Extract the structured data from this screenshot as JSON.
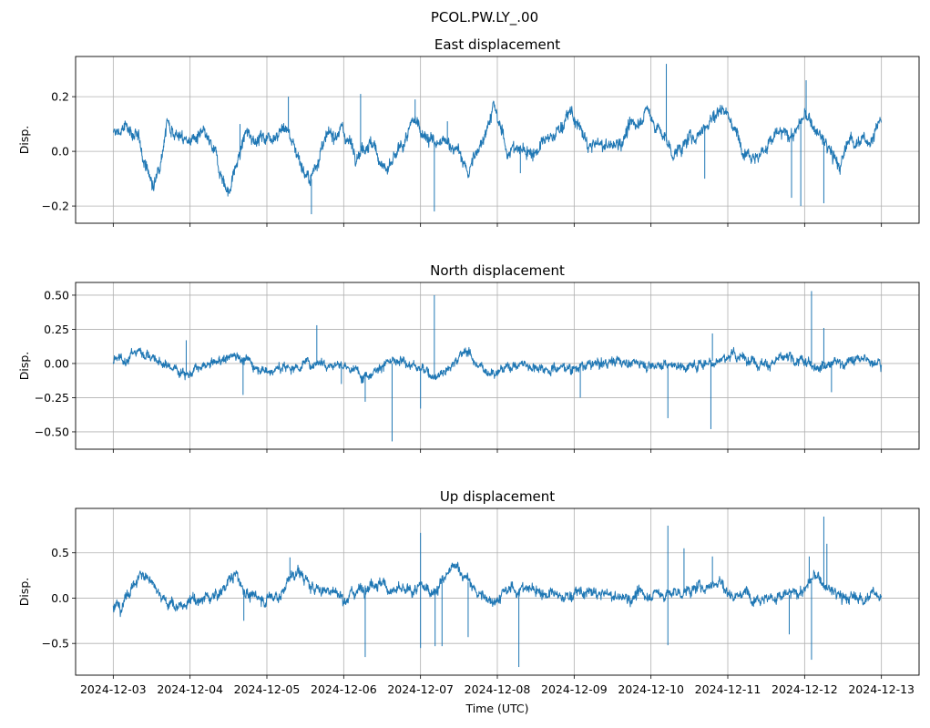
{
  "chart_data": {
    "type": "line",
    "suptitle": "PCOL.PW.LY_.00",
    "xlabel": "Time (UTC)",
    "x_unit": "days since 2024-12-03",
    "xlim": [
      -0.49,
      10.49
    ],
    "x_ticks": [
      0,
      1,
      2,
      3,
      4,
      5,
      6,
      7,
      8,
      9,
      10
    ],
    "x_tick_labels": [
      "2024-12-03",
      "2024-12-04",
      "2024-12-05",
      "2024-12-06",
      "2024-12-07",
      "2024-12-08",
      "2024-12-09",
      "2024-12-10",
      "2024-12-11",
      "2024-12-12",
      "2024-12-13"
    ],
    "grid": true,
    "color": "#1f77b4",
    "panels": [
      {
        "title": "East displacement",
        "ylabel": "Disp.",
        "ylim": [
          -0.263,
          0.347
        ],
        "y_ticks": [
          -0.2,
          0.0,
          0.2
        ],
        "y_tick_labels": [
          "−0.2",
          "0.0",
          "0.2"
        ],
        "noise": 0.014,
        "trend": [
          [
            0,
            0.06
          ],
          [
            0.21,
            0.09
          ],
          [
            0.35,
            0.02
          ],
          [
            0.53,
            -0.14
          ],
          [
            0.7,
            0.11
          ],
          [
            0.91,
            0.04
          ],
          [
            1.19,
            0.05
          ],
          [
            1.33,
            -0.02
          ],
          [
            1.5,
            -0.15
          ],
          [
            1.72,
            0.06
          ],
          [
            1.96,
            0.05
          ],
          [
            2.25,
            0.09
          ],
          [
            2.39,
            0.0
          ],
          [
            2.56,
            -0.12
          ],
          [
            2.7,
            0.01
          ],
          [
            2.95,
            0.09
          ],
          [
            3.16,
            0.0
          ],
          [
            3.33,
            0.04
          ],
          [
            3.58,
            -0.08
          ],
          [
            3.93,
            0.11
          ],
          [
            4.21,
            0.02
          ],
          [
            4.42,
            0.03
          ],
          [
            4.63,
            -0.08
          ],
          [
            4.95,
            0.16
          ],
          [
            5.12,
            0.01
          ],
          [
            5.47,
            0.0
          ],
          [
            5.68,
            0.04
          ],
          [
            5.96,
            0.14
          ],
          [
            6.18,
            0.02
          ],
          [
            6.53,
            0.02
          ],
          [
            6.95,
            0.15
          ],
          [
            7.3,
            -0.01
          ],
          [
            7.58,
            0.06
          ],
          [
            7.96,
            0.17
          ],
          [
            8.14,
            0.04
          ],
          [
            8.39,
            -0.02
          ],
          [
            8.63,
            0.06
          ],
          [
            8.84,
            0.06
          ],
          [
            9.02,
            0.13
          ],
          [
            9.26,
            0.03
          ],
          [
            9.47,
            -0.06
          ],
          [
            9.58,
            0.05
          ],
          [
            9.82,
            0.03
          ],
          [
            10.0,
            0.12
          ]
        ],
        "spikes": [
          [
            2.28,
            0.2
          ],
          [
            2.58,
            -0.23
          ],
          [
            3.22,
            0.21
          ],
          [
            3.93,
            0.19
          ],
          [
            4.18,
            -0.22
          ],
          [
            5.3,
            -0.08
          ],
          [
            7.2,
            0.32
          ],
          [
            7.7,
            -0.1
          ],
          [
            8.83,
            -0.17
          ],
          [
            8.95,
            -0.2
          ],
          [
            9.02,
            0.26
          ],
          [
            9.25,
            -0.19
          ],
          [
            4.35,
            0.11
          ],
          [
            1.65,
            0.1
          ]
        ]
      },
      {
        "title": "North displacement",
        "ylabel": "Disp.",
        "ylim": [
          -0.627,
          0.593
        ],
        "y_ticks": [
          -0.5,
          -0.25,
          0.0,
          0.25,
          0.5
        ],
        "y_tick_labels": [
          "−0.50",
          "−0.25",
          "0.00",
          "0.25",
          "0.50"
        ],
        "noise": 0.02,
        "trend": [
          [
            0,
            0.0
          ],
          [
            0.2,
            0.05
          ],
          [
            0.35,
            0.1
          ],
          [
            0.5,
            0.05
          ],
          [
            0.6,
            0.0
          ],
          [
            0.9,
            -0.05
          ],
          [
            1.0,
            -0.07
          ],
          [
            1.2,
            -0.03
          ],
          [
            1.5,
            0.05
          ],
          [
            1.6,
            0.07
          ],
          [
            1.8,
            0.0
          ],
          [
            2.0,
            -0.05
          ],
          [
            2.3,
            -0.03
          ],
          [
            2.5,
            0.0
          ],
          [
            2.7,
            0.02
          ],
          [
            2.9,
            0.0
          ],
          [
            3.1,
            -0.05
          ],
          [
            3.3,
            -0.08
          ],
          [
            3.5,
            0.0
          ],
          [
            3.7,
            0.0
          ],
          [
            3.9,
            0.0
          ],
          [
            4.0,
            -0.05
          ],
          [
            4.2,
            -0.08
          ],
          [
            4.4,
            -0.02
          ],
          [
            4.5,
            0.05
          ],
          [
            4.6,
            0.1
          ],
          [
            4.8,
            -0.05
          ],
          [
            5.0,
            -0.05
          ],
          [
            5.3,
            0.0
          ],
          [
            5.6,
            -0.03
          ],
          [
            5.9,
            -0.03
          ],
          [
            6.2,
            -0.02
          ],
          [
            6.5,
            0.02
          ],
          [
            6.9,
            0.0
          ],
          [
            7.3,
            -0.01
          ],
          [
            7.5,
            -0.02
          ],
          [
            7.8,
            0.02
          ],
          [
            8.0,
            0.05
          ],
          [
            8.2,
            0.05
          ],
          [
            8.5,
            0.0
          ],
          [
            8.8,
            0.03
          ],
          [
            9.0,
            0.0
          ],
          [
            9.3,
            0.0
          ],
          [
            9.6,
            0.02
          ],
          [
            10.0,
            0.03
          ]
        ],
        "spikes": [
          [
            0.95,
            0.17
          ],
          [
            1.69,
            -0.23
          ],
          [
            2.65,
            0.28
          ],
          [
            2.97,
            -0.15
          ],
          [
            3.28,
            -0.28
          ],
          [
            3.63,
            -0.57
          ],
          [
            4.0,
            -0.33
          ],
          [
            4.18,
            0.5
          ],
          [
            6.08,
            -0.25
          ],
          [
            7.22,
            -0.4
          ],
          [
            7.78,
            -0.48
          ],
          [
            7.8,
            0.22
          ],
          [
            9.09,
            0.53
          ],
          [
            9.25,
            0.26
          ],
          [
            9.35,
            -0.21
          ]
        ]
      },
      {
        "title": "Up displacement",
        "ylabel": "Disp.",
        "ylim": [
          -0.85,
          0.99
        ],
        "y_ticks": [
          -0.5,
          0.0,
          0.5
        ],
        "y_tick_labels": [
          "−0.5",
          "0.0",
          "0.5"
        ],
        "noise": 0.035,
        "trend": [
          [
            0,
            -0.1
          ],
          [
            0.1,
            -0.1
          ],
          [
            0.2,
            0.05
          ],
          [
            0.3,
            0.2
          ],
          [
            0.35,
            0.25
          ],
          [
            0.5,
            0.2
          ],
          [
            0.6,
            0.1
          ],
          [
            0.7,
            -0.05
          ],
          [
            0.8,
            -0.08
          ],
          [
            0.9,
            -0.1
          ],
          [
            1.0,
            -0.05
          ],
          [
            1.2,
            0.0
          ],
          [
            1.4,
            0.05
          ],
          [
            1.5,
            0.2
          ],
          [
            1.6,
            0.25
          ],
          [
            1.7,
            0.1
          ],
          [
            1.8,
            0.0
          ],
          [
            2.0,
            0.0
          ],
          [
            2.2,
            0.05
          ],
          [
            2.3,
            0.25
          ],
          [
            2.4,
            0.3
          ],
          [
            2.5,
            0.2
          ],
          [
            2.6,
            0.1
          ],
          [
            2.8,
            0.1
          ],
          [
            3.0,
            0.0
          ],
          [
            3.2,
            0.1
          ],
          [
            3.4,
            0.2
          ],
          [
            3.5,
            0.15
          ],
          [
            3.6,
            0.1
          ],
          [
            3.8,
            0.05
          ],
          [
            4.0,
            0.1
          ],
          [
            4.2,
            0.1
          ],
          [
            4.4,
            0.3
          ],
          [
            4.5,
            0.35
          ],
          [
            4.6,
            0.2
          ],
          [
            4.8,
            0.0
          ],
          [
            5.0,
            0.0
          ],
          [
            5.2,
            0.1
          ],
          [
            5.5,
            0.1
          ],
          [
            5.8,
            0.0
          ],
          [
            6.0,
            0.05
          ],
          [
            6.3,
            0.05
          ],
          [
            6.6,
            0.0
          ],
          [
            7.0,
            0.05
          ],
          [
            7.3,
            0.05
          ],
          [
            7.6,
            0.1
          ],
          [
            7.9,
            0.2
          ],
          [
            8.0,
            0.05
          ],
          [
            8.3,
            0.05
          ],
          [
            8.6,
            0.0
          ],
          [
            8.9,
            0.05
          ],
          [
            9.0,
            0.1
          ],
          [
            9.15,
            0.25
          ],
          [
            9.3,
            0.1
          ],
          [
            9.5,
            0.0
          ],
          [
            9.7,
            0.0
          ],
          [
            10.0,
            0.05
          ]
        ],
        "spikes": [
          [
            1.7,
            -0.25
          ],
          [
            2.3,
            0.45
          ],
          [
            3.28,
            -0.65
          ],
          [
            4.0,
            0.72
          ],
          [
            4.0,
            -0.55
          ],
          [
            4.19,
            -0.53
          ],
          [
            4.28,
            -0.53
          ],
          [
            4.62,
            -0.43
          ],
          [
            5.28,
            -0.76
          ],
          [
            7.22,
            0.8
          ],
          [
            7.22,
            -0.52
          ],
          [
            7.43,
            0.55
          ],
          [
            7.8,
            0.46
          ],
          [
            8.8,
            -0.4
          ],
          [
            9.06,
            0.46
          ],
          [
            9.09,
            -0.68
          ],
          [
            9.25,
            0.9
          ],
          [
            9.29,
            0.6
          ]
        ]
      }
    ]
  }
}
